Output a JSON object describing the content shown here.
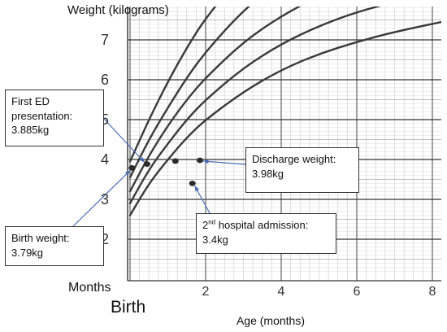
{
  "chart_data": {
    "type": "line",
    "ylabel": "Weight (kilograms)",
    "xlabel": "Age (months)",
    "months_label": "Months",
    "birth_label": "Birth",
    "x_ticks": [
      "2",
      "4",
      "6",
      "8"
    ],
    "y_ticks": [
      "2",
      "3",
      "4",
      "5",
      "6",
      "7"
    ],
    "xlim": [
      0,
      8.5
    ],
    "ylim": [
      1.1,
      7.8
    ],
    "grid": true,
    "points": [
      {
        "x": 0.05,
        "y": 3.79
      },
      {
        "x": 0.45,
        "y": 3.885
      },
      {
        "x": 1.2,
        "y": 3.96
      },
      {
        "x": 1.85,
        "y": 3.98
      },
      {
        "x": 1.65,
        "y": 3.4
      }
    ],
    "reference_curves": [
      {
        "x": [
          0,
          0.5,
          1,
          1.5,
          2,
          3,
          4,
          5,
          6,
          7,
          8.5
        ],
        "y": [
          2.6,
          3.4,
          4.0,
          4.55,
          5.0,
          5.7,
          6.25,
          6.65,
          6.95,
          7.2,
          7.5
        ]
      },
      {
        "x": [
          0,
          0.5,
          1,
          1.5,
          2,
          3,
          4,
          5,
          6,
          7,
          8.5
        ],
        "y": [
          2.9,
          3.75,
          4.4,
          5.0,
          5.5,
          6.3,
          6.9,
          7.35,
          7.7,
          7.95,
          8.3
        ]
      },
      {
        "x": [
          0,
          0.5,
          1,
          1.5,
          2,
          3,
          4,
          5,
          6,
          7,
          8.5
        ],
        "y": [
          3.2,
          4.1,
          4.85,
          5.5,
          6.05,
          6.95,
          7.6,
          8.1,
          8.5,
          8.8,
          9.1
        ]
      },
      {
        "x": [
          0,
          0.5,
          1,
          1.5,
          2,
          3,
          4,
          5,
          6
        ],
        "y": [
          3.55,
          4.5,
          5.3,
          6.05,
          6.7,
          7.75,
          8.5,
          9.0,
          9.4
        ]
      },
      {
        "x": [
          0,
          0.5,
          1,
          1.5,
          2,
          3,
          4,
          5
        ],
        "y": [
          3.95,
          5.0,
          5.95,
          6.8,
          7.55,
          8.7,
          9.5,
          10.0
        ]
      }
    ]
  },
  "annotations": {
    "first_ed": {
      "line1": "First ED",
      "line2": "presentation:",
      "value": "3.885kg"
    },
    "birth_weight": {
      "line1": "Birth weight:",
      "value": "3.79kg"
    },
    "discharge": {
      "line1": "Discharge weight:",
      "value": "3.98kg"
    },
    "admission": {
      "number": "2",
      "suffix": "nd",
      "rest": " hospital admission:",
      "value": "3.4kg"
    }
  }
}
